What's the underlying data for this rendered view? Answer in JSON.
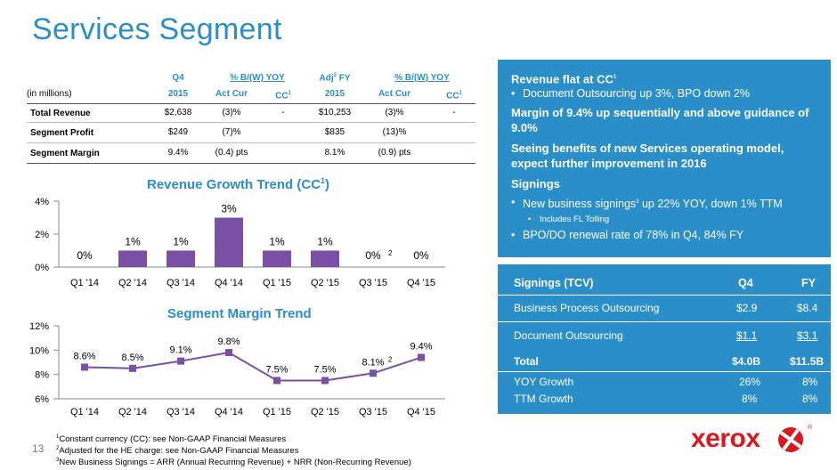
{
  "title": "Services Segment",
  "table": {
    "units_label": "(in millions)",
    "col_q4_top": "Q4",
    "col_q4_bottom": "2015",
    "col_bw_top": "% B/(W) YOY",
    "col_actcur": "Act Cur",
    "col_cc": "CC",
    "col_cc_sup": "1",
    "col_fy_top": "Adj",
    "col_fy_sup": "2",
    "col_fy_top2": " FY",
    "col_fy_bottom": "2015",
    "col_bw2_top": "% B/(W) YOY",
    "col_actcur2": "Act Cur",
    "col_cc2": "CC",
    "col_cc2_sup": "1",
    "rows": [
      {
        "label": "Total Revenue",
        "q4": "$2,638",
        "act": "(3)%",
        "cc": "-",
        "fy": "$10,253",
        "act2": "(3)%",
        "cc2": "-"
      },
      {
        "label": "Segment Profit",
        "q4": "$249",
        "act": "(7)%",
        "cc": "",
        "fy": "$835",
        "act2": "(13)%",
        "cc2": ""
      },
      {
        "label": "Segment Margin",
        "q4": "9.4%",
        "act": "(0.4) pts",
        "cc": "",
        "fy": "8.1%",
        "act2": "(0.9) pts",
        "cc2": ""
      }
    ]
  },
  "revenue_chart_title": "Revenue Growth Trend (CC",
  "revenue_chart_title_sup": "1",
  "revenue_chart_title_end": ")",
  "margin_chart_title": "Segment Margin Trend",
  "chart_data": [
    {
      "type": "bar",
      "title": "Revenue Growth Trend (CC1)",
      "categories": [
        "Q1 '14",
        "Q2 '14",
        "Q3 '14",
        "Q4 '14",
        "Q1 '15",
        "Q2 '15",
        "Q3 '15",
        "Q4 '15"
      ],
      "values": [
        0,
        1,
        1,
        3,
        1,
        1,
        0,
        0
      ],
      "labels": [
        "0%",
        "1%",
        "1%",
        "3%",
        "1%",
        "1%",
        "0%",
        "0%"
      ],
      "annotations": {
        "6": "2"
      },
      "yticks": [
        "0%",
        "2%",
        "4%"
      ],
      "ylim": [
        0,
        4
      ],
      "color": "#7a4fa6"
    },
    {
      "type": "line",
      "title": "Segment Margin Trend",
      "categories": [
        "Q1 '14",
        "Q2 '14",
        "Q3 '14",
        "Q4 '14",
        "Q1 '15",
        "Q2 '15",
        "Q3 '15",
        "Q4 '15"
      ],
      "values": [
        8.6,
        8.5,
        9.1,
        9.8,
        7.5,
        7.5,
        8.1,
        9.4
      ],
      "labels": [
        "8.6%",
        "8.5%",
        "9.1%",
        "9.8%",
        "7.5%",
        "7.5%",
        "8.1%",
        "9.4%"
      ],
      "annotations": {
        "6": "2"
      },
      "yticks": [
        "6%",
        "8%",
        "10%",
        "12%"
      ],
      "ylim": [
        6,
        12
      ],
      "color": "#7a4fa6"
    }
  ],
  "panel": {
    "head1": "Revenue flat at CC",
    "head1_sup": "1",
    "bullet1": "Document Outsourcing up 3%, BPO down 2%",
    "head2": "Margin of 9.4% up sequentially and above guidance of 9.0%",
    "head3": "Seeing benefits of new Services operating model, expect further improvement in 2016",
    "head4": "Signings",
    "bullet2_pre": "New business signings",
    "bullet2_sup": "3",
    "bullet2_post": " up 22% YOY, down 1% TTM",
    "sub1": "Includes FL Tolling",
    "bullet3": "BPO/DO renewal rate of 78% in Q4, 84% FY"
  },
  "signings": {
    "header": "Signings (TCV)",
    "col_q4": "Q4",
    "col_fy": "FY",
    "rows": [
      {
        "label": "Business Process Outsourcing",
        "q4": "$2.9",
        "fy": "$8.4"
      },
      {
        "label": "Document Outsourcing",
        "q4": "$1.1",
        "fy": "$3.1"
      },
      {
        "label": "Total",
        "q4": "$4.0B",
        "fy": "$11.5B"
      },
      {
        "label": "YOY Growth",
        "q4": "26%",
        "fy": "8%"
      },
      {
        "label": "TTM Growth",
        "q4": "8%",
        "fy": "8%"
      }
    ]
  },
  "footnotes": {
    "fn1_sup": "1",
    "fn1": "Constant currency (CC):  see Non-GAAP Financial Measures",
    "fn2_sup": "2",
    "fn2": "Adjusted for the HE charge: see Non-GAAP Financial Measures",
    "fn3_sup": "3",
    "fn3": "New Business Signings = ARR (Annual Recurring Revenue) + NRR (Non-Recurring Revenue)"
  },
  "page_number": "13",
  "logo_text": "xerox",
  "logo_reg": "®",
  "colors": {
    "accent": "#2a8ec9",
    "bar": "#7a4fa6",
    "logo_red": "#d71920"
  }
}
